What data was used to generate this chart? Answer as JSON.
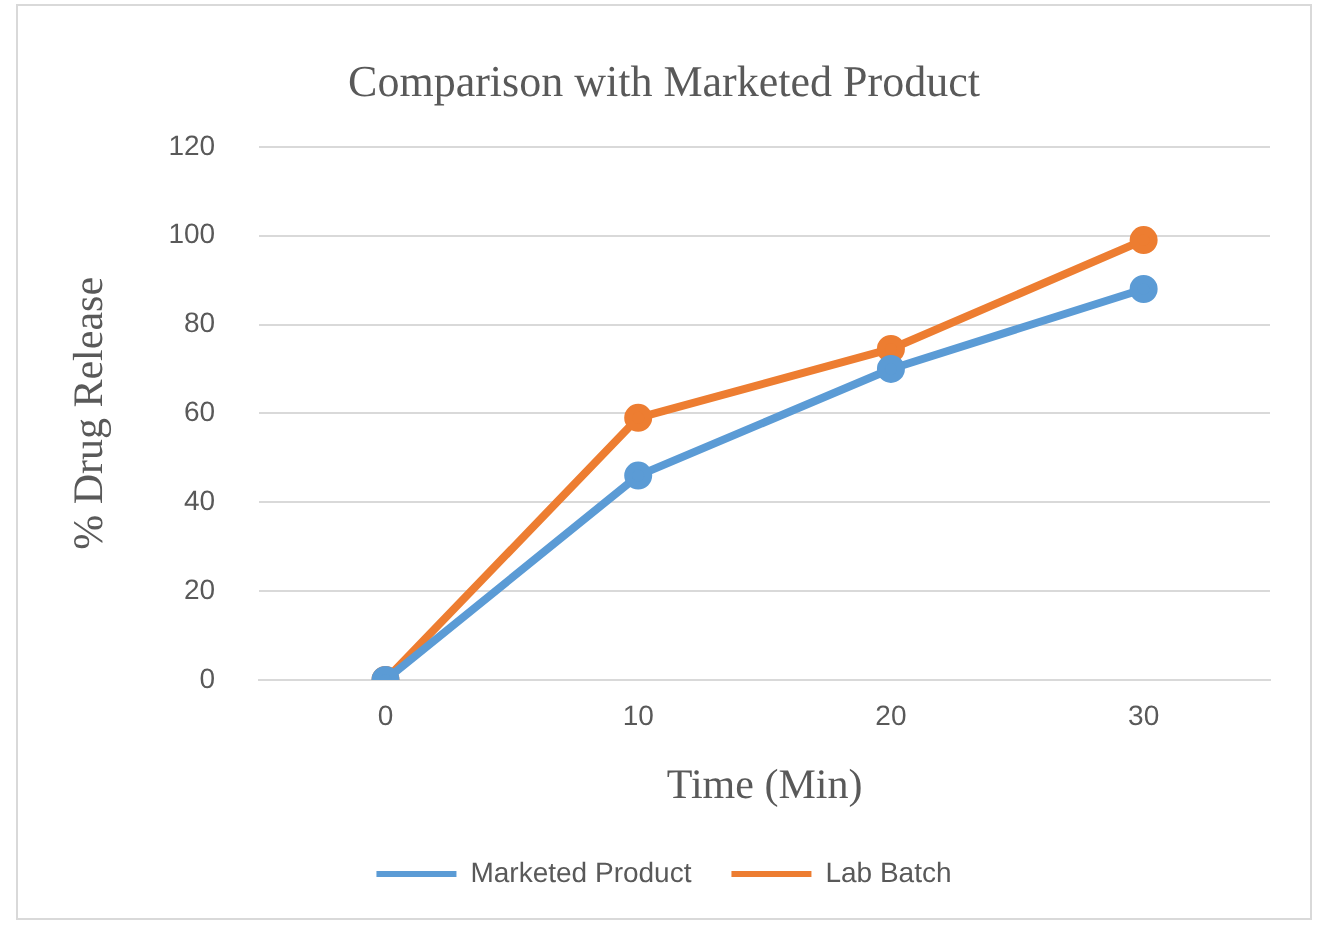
{
  "chart_data": {
    "type": "line",
    "title": "Comparison with Marketed Product",
    "xlabel": "Time (Min)",
    "ylabel": "% Drug Release",
    "categories": [
      "0",
      "10",
      "20",
      "30"
    ],
    "series": [
      {
        "name": "Marketed Product",
        "color": "#5b9bd5",
        "values": [
          0,
          46,
          70,
          88
        ]
      },
      {
        "name": "Lab Batch",
        "color": "#ed7d31",
        "values": [
          0,
          59,
          74.5,
          99
        ]
      }
    ],
    "ylim": [
      0,
      120
    ],
    "yticks": [
      0,
      20,
      40,
      60,
      80,
      100,
      120
    ],
    "grid": "y",
    "legend": "bottom",
    "marker": "circle",
    "line_style": "solid"
  }
}
